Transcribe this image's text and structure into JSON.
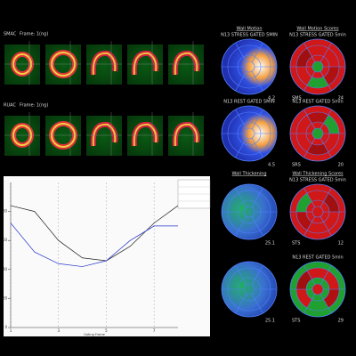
{
  "views": [
    {
      "label": "SMAC",
      "frame": "Frame: 1(ng)"
    },
    {
      "label": "RUAC",
      "frame": "Frame: 1(ng)"
    }
  ],
  "panels": [
    {
      "title": "Wall Motion",
      "subtitle": "N13 STRESS GATED 5MIN",
      "value": 4.2
    },
    {
      "title": "Wall Motion Scores",
      "subtitle": "N13 STRESS GATED 5min",
      "tag": "SMS",
      "value": 24
    },
    {
      "subtitle": "N13 REST GATED 5MIN",
      "value": 4.5
    },
    {
      "subtitle": "N13 REST GATED 5min",
      "tag": "SRS",
      "value": 20
    },
    {
      "title": "Wall Thickening",
      "value": 25.1
    },
    {
      "title": "Wall Thickening Scores",
      "subtitle": "N13 STRESS GATED 5min",
      "tag": "STS",
      "value": 12
    },
    {
      "value": 25.1
    },
    {
      "subtitle": "N13 REST GATED 5min",
      "tag": "STS",
      "value": 29
    }
  ],
  "volume_chart": {
    "x_label": "Gating Frame",
    "xlim": [
      1,
      8
    ],
    "xticks": [
      1,
      3,
      5,
      7
    ],
    "ylim": [
      0,
      100
    ],
    "yticks": [
      0,
      20,
      40,
      60,
      80
    ],
    "x": [
      1,
      2,
      3,
      4,
      5,
      6,
      7,
      8
    ],
    "series": [
      {
        "color": "#222222",
        "values": [
          84,
          80,
          60,
          48,
          46,
          56,
          72,
          84
        ]
      },
      {
        "color": "#2233cc",
        "values": [
          72,
          52,
          44,
          42,
          46,
          60,
          70,
          70
        ]
      }
    ]
  }
}
